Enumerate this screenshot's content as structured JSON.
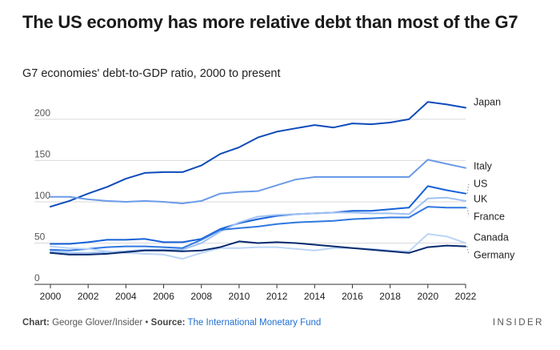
{
  "title": "The US economy has more relative debt than most of the G7",
  "subtitle": "G7 economies' debt-to-GDP ratio, 2000 to present",
  "footer": {
    "chart_label": "Chart:",
    "chart_author": "George Glover/Insider",
    "bullet": "•",
    "source_label": "Source:",
    "source_name": "The International Monetary Fund"
  },
  "brand": "INSIDER",
  "colors": {
    "Japan": "#0d4bb8",
    "Italy": "#6b9be8",
    "US": "#1560d8",
    "UK": "#9fc0f2",
    "France": "#2f78e0",
    "Canada": "#bcd5f7",
    "Germany": "#062a6e",
    "grid": "#d9d9d9",
    "axis": "#333333"
  },
  "chart_data": {
    "type": "line",
    "x": [
      2000,
      2001,
      2002,
      2003,
      2004,
      2005,
      2006,
      2007,
      2008,
      2009,
      2010,
      2011,
      2012,
      2013,
      2014,
      2015,
      2016,
      2017,
      2018,
      2019,
      2020,
      2021,
      2022
    ],
    "xticks": [
      "2000",
      "2002",
      "2004",
      "2006",
      "2008",
      "2010",
      "2012",
      "2014",
      "2016",
      "2018",
      "2020",
      "2022"
    ],
    "yticks": [
      "0",
      "50",
      "100",
      "150",
      "200"
    ],
    "ylim": [
      0,
      230
    ],
    "xlim": [
      2000,
      2022
    ],
    "grid": true,
    "series": [
      {
        "name": "Japan",
        "values": [
          94,
          101,
          110,
          118,
          128,
          135,
          136,
          136,
          144,
          158,
          166,
          178,
          185,
          189,
          193,
          190,
          195,
          194,
          196,
          200,
          221,
          218,
          214
        ]
      },
      {
        "name": "Italy",
        "values": [
          106,
          106,
          103,
          101,
          100,
          101,
          100,
          98,
          101,
          110,
          112,
          113,
          120,
          127,
          130,
          130,
          130,
          130,
          130,
          130,
          151,
          146,
          141
        ]
      },
      {
        "name": "US",
        "values": [
          49,
          49,
          51,
          54,
          54,
          55,
          51,
          51,
          55,
          67,
          74,
          79,
          83,
          85,
          86,
          87,
          89,
          89,
          91,
          93,
          119,
          114,
          110
        ]
      },
      {
        "name": "UK",
        "values": [
          40,
          38,
          38,
          39,
          40,
          42,
          42,
          42,
          50,
          64,
          75,
          82,
          84,
          85,
          86,
          87,
          87,
          86,
          86,
          85,
          104,
          105,
          101
        ]
      },
      {
        "name": "France",
        "values": [
          42,
          41,
          43,
          45,
          46,
          46,
          45,
          44,
          54,
          66,
          68,
          70,
          73,
          75,
          76,
          77,
          79,
          80,
          81,
          81,
          94,
          93,
          93
        ]
      },
      {
        "name": "Canada",
        "values": [
          46,
          44,
          43,
          40,
          38,
          37,
          36,
          31,
          38,
          44,
          44,
          45,
          45,
          43,
          41,
          44,
          44,
          43,
          41,
          40,
          61,
          58,
          50
        ]
      },
      {
        "name": "Germany",
        "values": [
          38,
          36,
          36,
          37,
          39,
          41,
          41,
          40,
          41,
          45,
          52,
          50,
          51,
          50,
          48,
          46,
          44,
          42,
          40,
          38,
          45,
          47,
          46
        ]
      }
    ]
  }
}
